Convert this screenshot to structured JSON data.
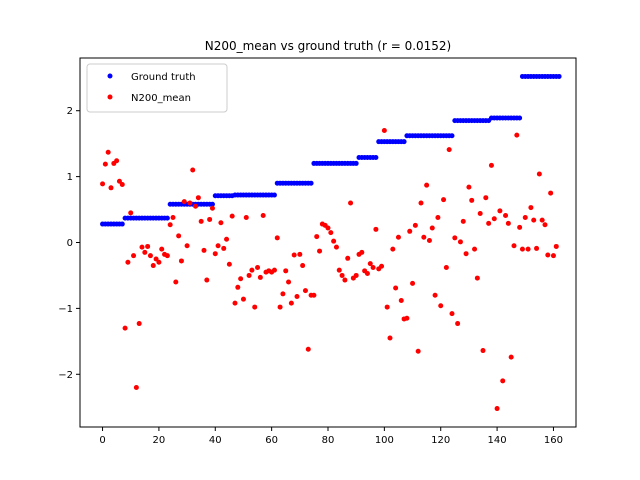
{
  "chart_data": {
    "type": "scatter",
    "title": "N200_mean vs ground truth (r = 0.0152)",
    "xlabel": "",
    "ylabel": "",
    "xlim": [
      -8,
      168
    ],
    "ylim": [
      -2.8,
      2.8
    ],
    "xticks": [
      0,
      20,
      40,
      60,
      80,
      100,
      120,
      140,
      160
    ],
    "yticks": [
      -2,
      -1,
      0,
      1,
      2
    ],
    "grid": false,
    "legend_position": "top-left",
    "series": [
      {
        "name": "Ground truth",
        "color": "#0000ff",
        "marker": "circle",
        "levels": [
          {
            "x_start": 0,
            "x_end": 7,
            "y": 0.28
          },
          {
            "x_start": 8,
            "x_end": 23,
            "y": 0.37
          },
          {
            "x_start": 24,
            "x_end": 39,
            "y": 0.58
          },
          {
            "x_start": 40,
            "x_end": 46,
            "y": 0.71
          },
          {
            "x_start": 47,
            "x_end": 61,
            "y": 0.72
          },
          {
            "x_start": 62,
            "x_end": 74,
            "y": 0.9
          },
          {
            "x_start": 75,
            "x_end": 90,
            "y": 1.2
          },
          {
            "x_start": 91,
            "x_end": 97,
            "y": 1.29
          },
          {
            "x_start": 98,
            "x_end": 107,
            "y": 1.53
          },
          {
            "x_start": 108,
            "x_end": 124,
            "y": 1.62
          },
          {
            "x_start": 125,
            "x_end": 137,
            "y": 1.85
          },
          {
            "x_start": 138,
            "x_end": 148,
            "y": 1.89
          },
          {
            "x_start": 149,
            "x_end": 162,
            "y": 2.52
          }
        ]
      },
      {
        "name": "N200_mean",
        "color": "#ff0000",
        "marker": "circle",
        "points": [
          [
            0,
            0.89
          ],
          [
            1,
            1.19
          ],
          [
            2,
            1.37
          ],
          [
            3,
            0.83
          ],
          [
            4,
            1.2
          ],
          [
            5,
            1.24
          ],
          [
            6,
            0.93
          ],
          [
            7,
            0.88
          ],
          [
            8,
            -1.3
          ],
          [
            9,
            -0.3
          ],
          [
            10,
            0.45
          ],
          [
            11,
            -0.2
          ],
          [
            12,
            -2.2
          ],
          [
            13,
            -1.23
          ],
          [
            14,
            -0.07
          ],
          [
            15,
            -0.15
          ],
          [
            16,
            -0.06
          ],
          [
            17,
            -0.2
          ],
          [
            18,
            -0.35
          ],
          [
            19,
            -0.25
          ],
          [
            20,
            -0.3
          ],
          [
            21,
            -0.1
          ],
          [
            22,
            -0.18
          ],
          [
            23,
            -0.2
          ],
          [
            24,
            0.27
          ],
          [
            25,
            0.38
          ],
          [
            26,
            -0.6
          ],
          [
            27,
            0.1
          ],
          [
            28,
            -0.28
          ],
          [
            29,
            0.62
          ],
          [
            30,
            -0.05
          ],
          [
            31,
            0.6
          ],
          [
            32,
            1.1
          ],
          [
            33,
            0.55
          ],
          [
            34,
            0.68
          ],
          [
            35,
            0.32
          ],
          [
            36,
            -0.12
          ],
          [
            37,
            -0.57
          ],
          [
            38,
            0.35
          ],
          [
            39,
            0.52
          ],
          [
            40,
            -0.17
          ],
          [
            41,
            -0.05
          ],
          [
            42,
            0.3
          ],
          [
            43,
            -0.09
          ],
          [
            44,
            0.05
          ],
          [
            45,
            -0.33
          ],
          [
            46,
            0.4
          ],
          [
            47,
            -0.92
          ],
          [
            48,
            -0.68
          ],
          [
            49,
            -0.55
          ],
          [
            50,
            -0.86
          ],
          [
            51,
            0.38
          ],
          [
            52,
            -0.5
          ],
          [
            53,
            -0.42
          ],
          [
            54,
            -0.98
          ],
          [
            55,
            -0.38
          ],
          [
            56,
            -0.53
          ],
          [
            57,
            0.41
          ],
          [
            58,
            -0.45
          ],
          [
            59,
            -0.43
          ],
          [
            60,
            -0.45
          ],
          [
            61,
            -0.42
          ],
          [
            62,
            0.07
          ],
          [
            63,
            -0.98
          ],
          [
            64,
            -0.78
          ],
          [
            65,
            -0.43
          ],
          [
            66,
            -0.6
          ],
          [
            67,
            -0.92
          ],
          [
            68,
            -0.19
          ],
          [
            69,
            -0.82
          ],
          [
            70,
            -0.18
          ],
          [
            71,
            -0.35
          ],
          [
            72,
            -0.73
          ],
          [
            73,
            -1.62
          ],
          [
            74,
            -0.8
          ],
          [
            75,
            -0.8
          ],
          [
            76,
            0.09
          ],
          [
            77,
            -0.13
          ],
          [
            78,
            0.28
          ],
          [
            79,
            0.26
          ],
          [
            80,
            0.22
          ],
          [
            81,
            0.15
          ],
          [
            82,
            0.02
          ],
          [
            83,
            -0.07
          ],
          [
            84,
            -0.42
          ],
          [
            85,
            -0.5
          ],
          [
            86,
            -0.57
          ],
          [
            87,
            -0.24
          ],
          [
            88,
            0.6
          ],
          [
            89,
            -0.54
          ],
          [
            90,
            -0.5
          ],
          [
            91,
            -0.18
          ],
          [
            92,
            -0.15
          ],
          [
            93,
            -0.43
          ],
          [
            94,
            -0.47
          ],
          [
            95,
            -0.32
          ],
          [
            96,
            -0.38
          ],
          [
            97,
            0.2
          ],
          [
            98,
            -0.4
          ],
          [
            99,
            -0.36
          ],
          [
            100,
            1.7
          ],
          [
            101,
            -0.98
          ],
          [
            102,
            -1.45
          ],
          [
            103,
            -0.1
          ],
          [
            104,
            -0.69
          ],
          [
            105,
            0.08
          ],
          [
            106,
            -0.88
          ],
          [
            107,
            -1.16
          ],
          [
            108,
            -1.15
          ],
          [
            109,
            0.17
          ],
          [
            110,
            -0.62
          ],
          [
            111,
            0.26
          ],
          [
            112,
            -1.65
          ],
          [
            113,
            0.6
          ],
          [
            114,
            0.08
          ],
          [
            115,
            0.87
          ],
          [
            116,
            0.03
          ],
          [
            117,
            0.22
          ],
          [
            118,
            -0.8
          ],
          [
            119,
            0.38
          ],
          [
            120,
            -0.96
          ],
          [
            121,
            0.65
          ],
          [
            122,
            -0.38
          ],
          [
            123,
            1.41
          ],
          [
            124,
            -1.08
          ],
          [
            125,
            0.07
          ],
          [
            126,
            -1.23
          ],
          [
            127,
            0.01
          ],
          [
            128,
            0.32
          ],
          [
            129,
            -0.17
          ],
          [
            130,
            0.84
          ],
          [
            131,
            0.64
          ],
          [
            132,
            -0.1
          ],
          [
            133,
            -0.54
          ],
          [
            134,
            0.44
          ],
          [
            135,
            -1.64
          ],
          [
            136,
            0.68
          ],
          [
            137,
            0.29
          ],
          [
            138,
            1.17
          ],
          [
            139,
            0.36
          ],
          [
            140,
            -2.52
          ],
          [
            141,
            0.48
          ],
          [
            142,
            -2.1
          ],
          [
            143,
            0.41
          ],
          [
            144,
            0.29
          ],
          [
            145,
            -1.74
          ],
          [
            146,
            -0.05
          ],
          [
            147,
            1.63
          ],
          [
            148,
            0.23
          ],
          [
            149,
            -0.1
          ],
          [
            150,
            0.38
          ],
          [
            151,
            -0.1
          ],
          [
            152,
            0.53
          ],
          [
            153,
            0.34
          ],
          [
            154,
            -0.09
          ],
          [
            155,
            1.04
          ],
          [
            156,
            0.34
          ],
          [
            157,
            0.27
          ],
          [
            158,
            -0.19
          ],
          [
            159,
            0.75
          ],
          [
            160,
            -0.2
          ],
          [
            161,
            -0.06
          ]
        ]
      }
    ]
  }
}
